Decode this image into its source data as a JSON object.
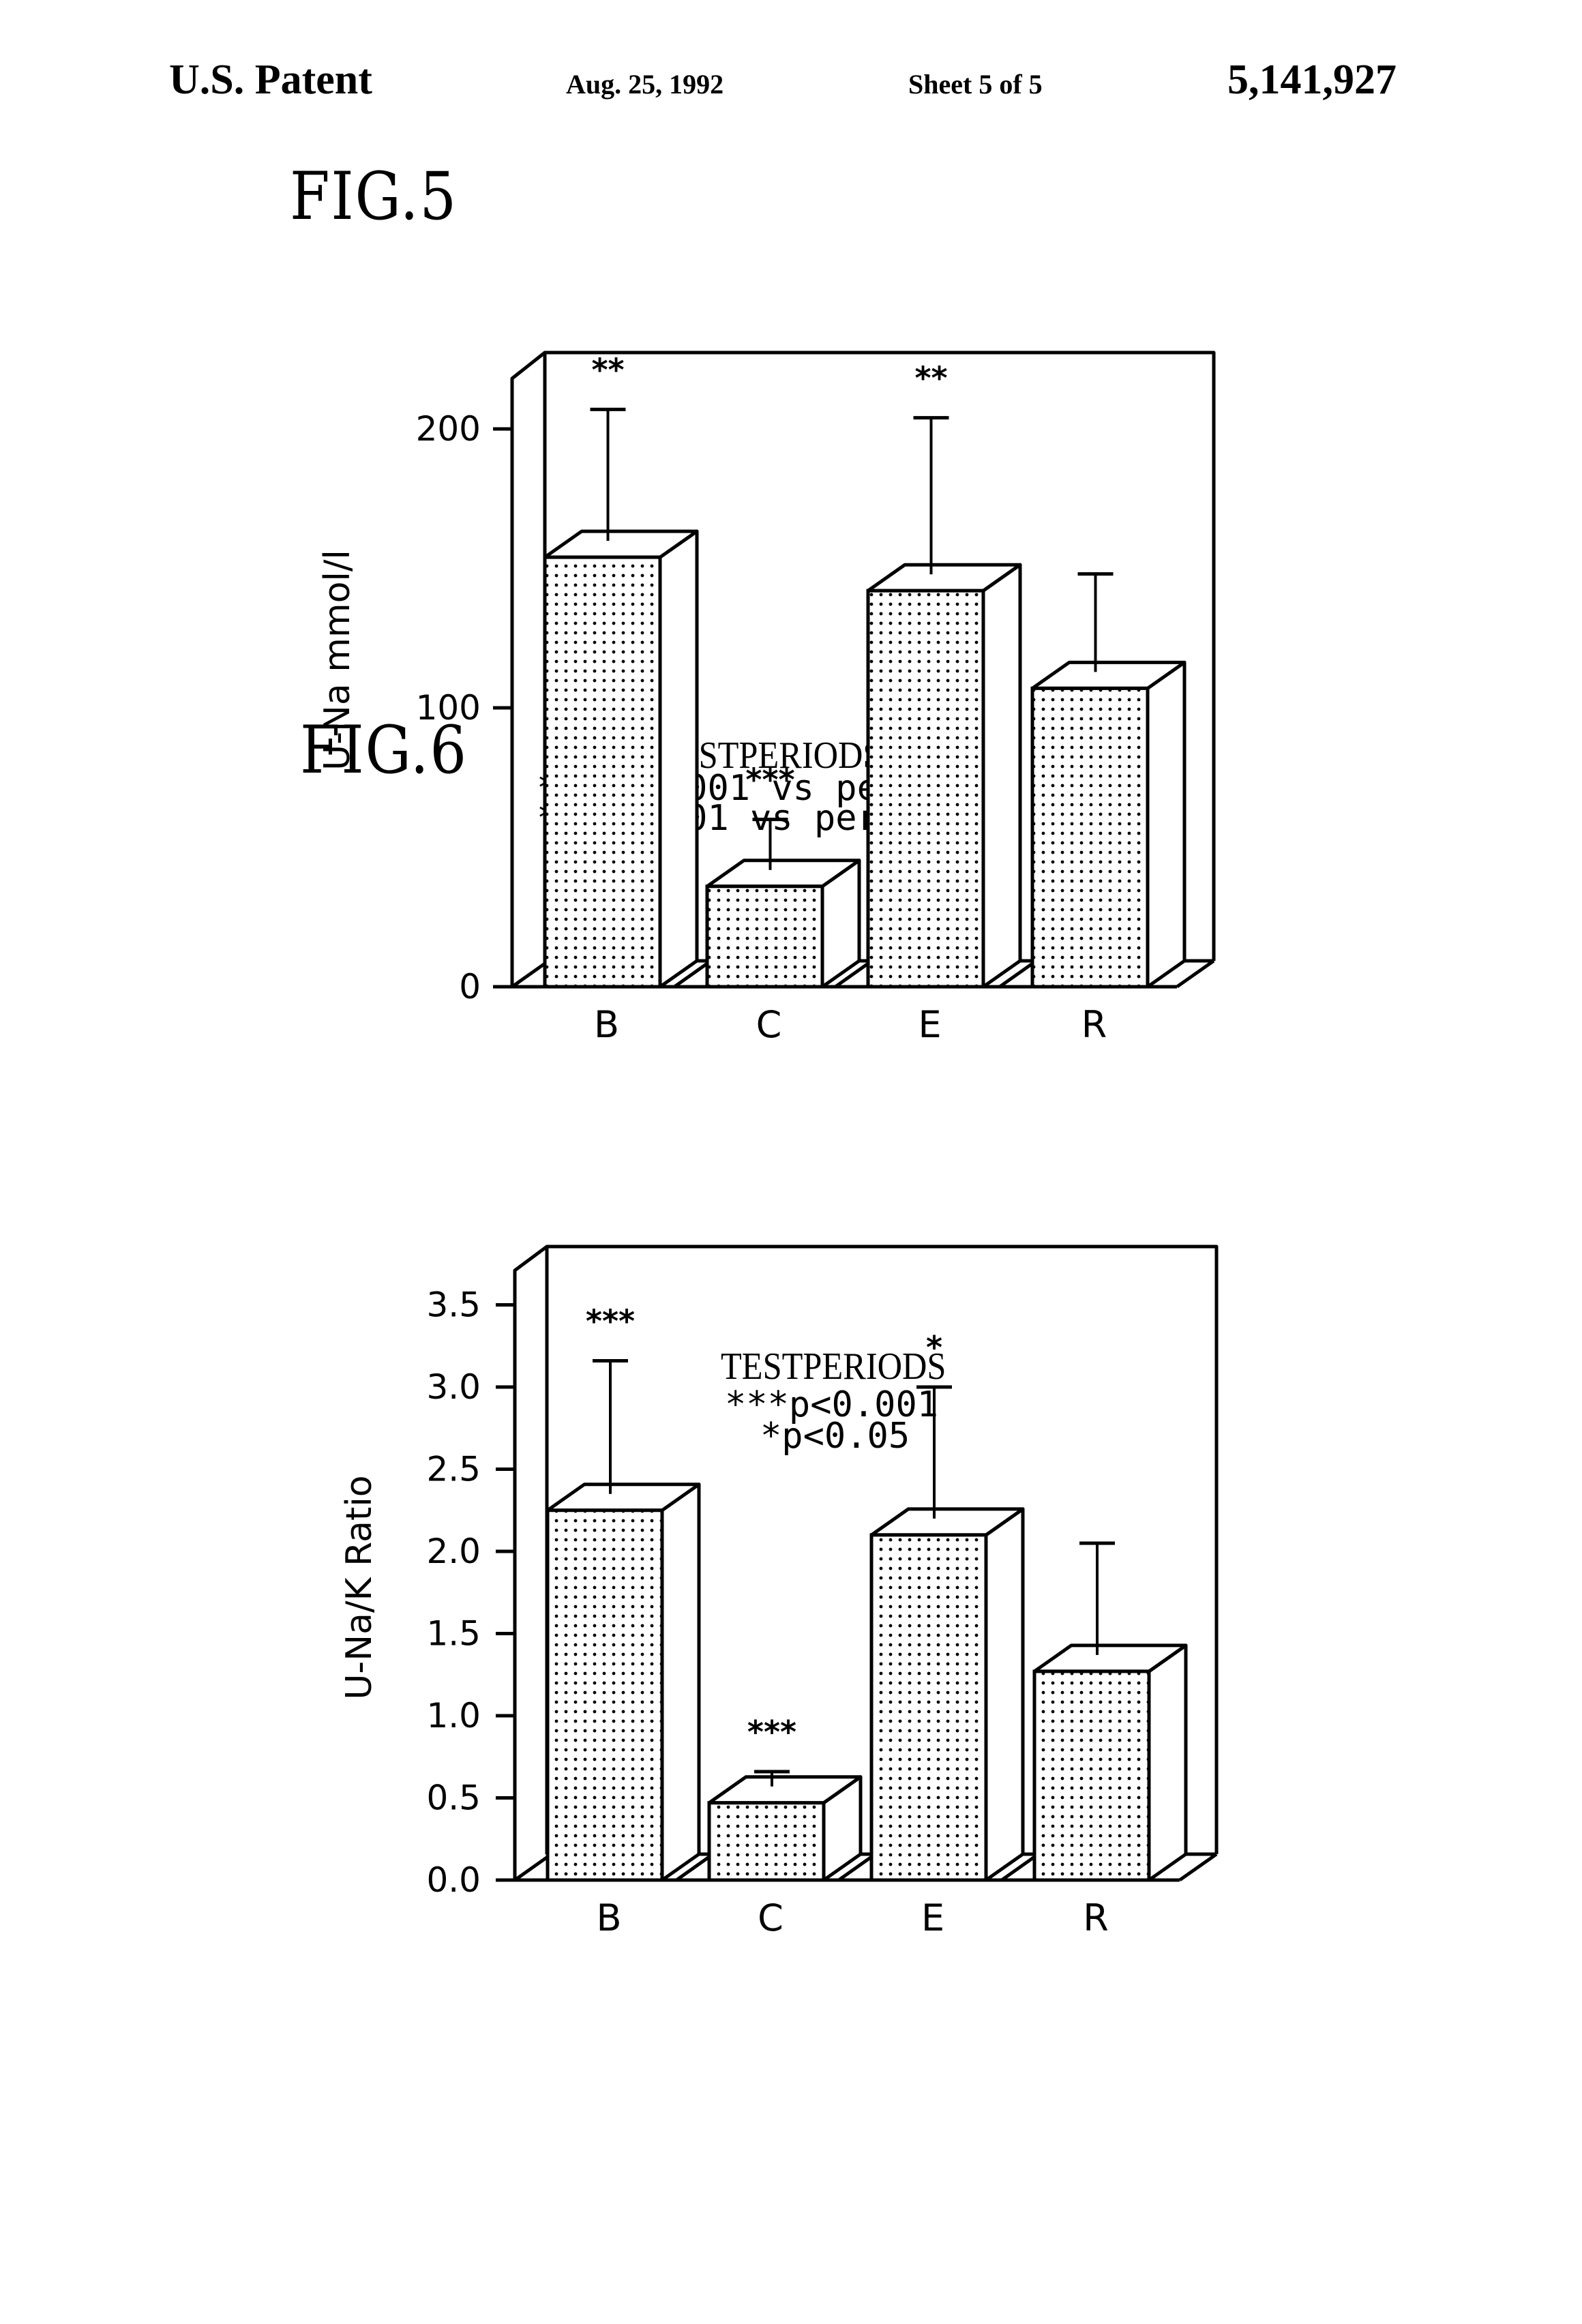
{
  "header": {
    "left": "U.S. Patent",
    "date": "Aug. 25, 1992",
    "sheet": "Sheet 5 of 5",
    "patent_number": "5,141,927"
  },
  "figures": [
    {
      "label": "FIG.5",
      "xlabel": "TESTPERIODS",
      "legend": [
        "***p<0.001  vs  period  R",
        "** p<0.01  vs  period  R"
      ]
    },
    {
      "label": "FIG.6",
      "xlabel": "TESTPERIODS",
      "legend": [
        "***p<0.001",
        "*p<0.05"
      ]
    }
  ],
  "chart_data": [
    {
      "type": "bar",
      "title": "FIG.5",
      "style": "3d-bar with upper error bars, dotted fill",
      "categories": [
        "B",
        "C",
        "E",
        "R"
      ],
      "values": [
        154,
        36,
        142,
        107
      ],
      "error_upper": [
        207,
        60,
        204,
        148
      ],
      "significance": [
        "**",
        "***",
        "**",
        ""
      ],
      "xlabel": "TESTPERIODS",
      "ylabel": "U-Na  mmol/l",
      "ylim": [
        0,
        220
      ],
      "yticks": [
        0,
        100,
        200
      ],
      "ytick_labels": [
        "0",
        "100",
        "200"
      ],
      "grid": false,
      "annotations": [
        "***p<0.001 vs period R",
        "** p<0.01 vs period R"
      ]
    },
    {
      "type": "bar",
      "title": "FIG.6",
      "style": "3d-bar with upper error bars, dotted fill",
      "categories": [
        "B",
        "C",
        "E",
        "R"
      ],
      "values": [
        2.25,
        0.47,
        2.1,
        1.27
      ],
      "error_upper": [
        3.16,
        0.66,
        3.0,
        2.05
      ],
      "significance": [
        "***",
        "***",
        "*",
        ""
      ],
      "xlabel": "TESTPERIODS",
      "ylabel": "U-Na/K  Ratio",
      "ylim": [
        0,
        3.8
      ],
      "yticks": [
        0.0,
        0.5,
        1.0,
        1.5,
        2.0,
        2.5,
        3.0,
        3.5
      ],
      "ytick_labels": [
        "0.0",
        "0.5",
        "1.0",
        "1.5",
        "2.0",
        "2.5",
        "3.0",
        "3.5"
      ],
      "grid": false,
      "annotations": [
        "***p<0.001",
        "*p<0.05"
      ]
    }
  ]
}
